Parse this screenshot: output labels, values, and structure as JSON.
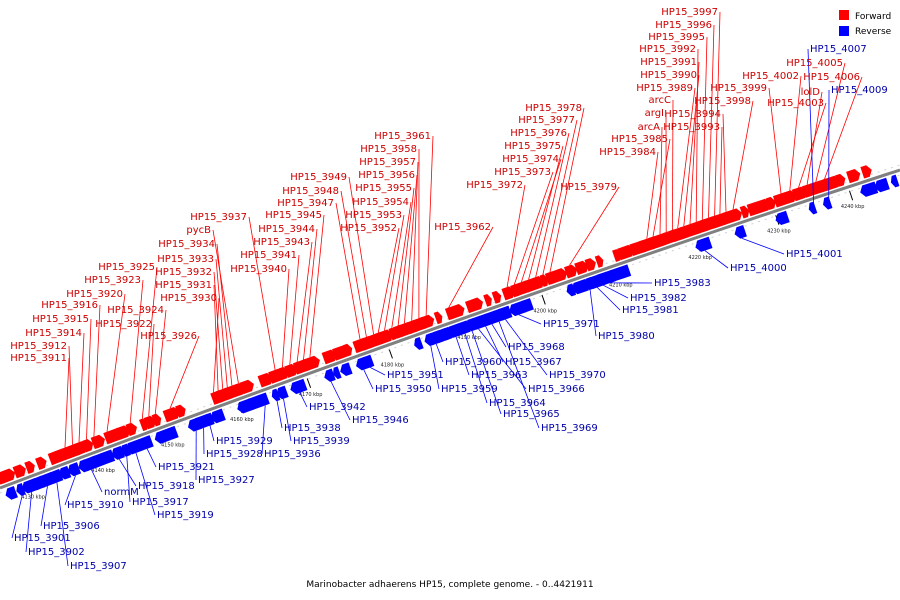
{
  "caption": "Marinobacter adhaerens HP15, complete genome. - 0..4421911",
  "legend": [
    {
      "label": "Forward",
      "color": "#ff0000"
    },
    {
      "label": "Reverse",
      "color": "#0000ff"
    }
  ],
  "colors": {
    "forward": "#ff0000",
    "forward_label": "#cc0000",
    "reverse": "#0000ff",
    "reverse_label": "#0000aa",
    "backbone": "#808080"
  },
  "ticks": [
    "4130 kbp",
    "4140 kbp",
    "4150 kbp",
    "4160 kbp",
    "4170 kbp",
    "4180 kbp",
    "4190 kbp",
    "4200 kbp",
    "4210 kbp",
    "4220 kbp",
    "4230 kbp",
    "4240 kbp"
  ],
  "forward_labels": [
    "HP15_3911",
    "HP15_3912",
    "HP15_3914",
    "HP15_3915",
    "HP15_3916",
    "HP15_3920",
    "HP15_3923",
    "HP15_3925",
    "HP15_3922",
    "HP15_3924",
    "HP15_3926",
    "HP15_3930",
    "HP15_3931",
    "HP15_3932",
    "HP15_3933",
    "HP15_3934",
    "pycB",
    "HP15_3937",
    "HP15_3940",
    "HP15_3941",
    "HP15_3943",
    "HP15_3944",
    "HP15_3945",
    "HP15_3947",
    "HP15_3948",
    "HP15_3949",
    "HP15_3952",
    "HP15_3953",
    "HP15_3954",
    "HP15_3955",
    "HP15_3956",
    "HP15_3957",
    "HP15_3958",
    "HP15_3961",
    "HP15_3962",
    "HP15_3972",
    "HP15_3973",
    "HP15_3974",
    "HP15_3975",
    "HP15_3976",
    "HP15_3977",
    "HP15_3978",
    "HP15_3979",
    "HP15_3984",
    "HP15_3985",
    "arcA",
    "argI",
    "arcC",
    "HP15_3989",
    "HP15_3990",
    "HP15_3991",
    "HP15_3992",
    "HP15_3995",
    "HP15_3996",
    "HP15_3997",
    "HP15_3993",
    "HP15_3994",
    "HP15_3998",
    "HP15_3999",
    "HP15_4002",
    "HP15_4003",
    "lolD",
    "HP15_4005",
    "HP15_4006"
  ],
  "reverse_labels": [
    "HP15_3901",
    "HP15_3902",
    "HP15_3906",
    "HP15_3907",
    "HP15_3910",
    "normM",
    "HP15_3918",
    "HP15_3917",
    "HP15_3919",
    "HP15_3921",
    "HP15_3927",
    "HP15_3928",
    "HP15_3929",
    "HP15_3936",
    "HP15_3938",
    "HP15_3939",
    "HP15_3942",
    "HP15_3946",
    "HP15_3950",
    "HP15_3951",
    "HP15_3959",
    "HP15_3960",
    "HP15_3963",
    "HP15_3964",
    "HP15_3965",
    "HP15_3966",
    "HP15_3967",
    "HP15_3968",
    "HP15_3969",
    "HP15_3970",
    "HP15_3971",
    "HP15_3980",
    "HP15_3981",
    "HP15_3982",
    "HP15_3983",
    "HP15_4000",
    "HP15_4001",
    "HP15_4007",
    "HP15_4009"
  ]
}
